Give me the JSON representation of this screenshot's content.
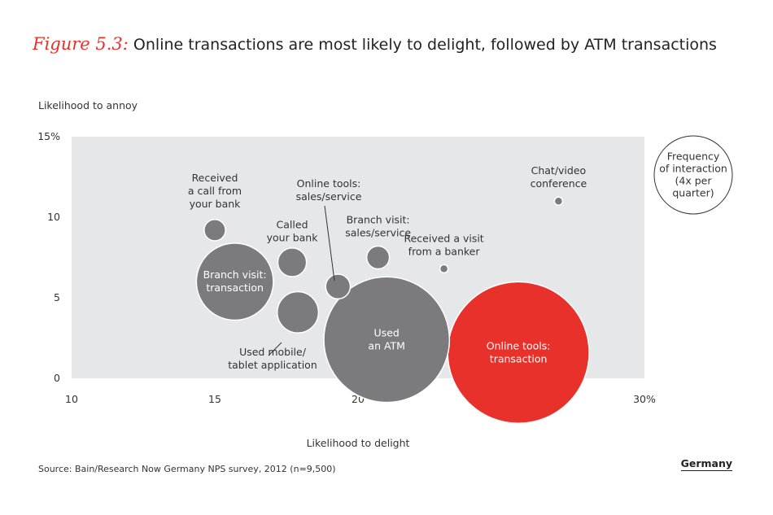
{
  "header": {
    "figure_label": "Figure 5.3:",
    "title": "Online transactions are most likely to delight, followed by ATM transactions"
  },
  "footer": {
    "source": "Source: Bain/Research Now Germany NPS survey, 2012 (n=9,500)",
    "country": "Germany"
  },
  "colors": {
    "plot_background": "#e6e7e8",
    "bubble_gray": "#7b7b7d",
    "bubble_highlight": "#e8312a",
    "annotation_text": "#333333"
  },
  "chart_data": {
    "type": "scatter",
    "variant": "bubble",
    "ylabel": "Likelihood to annoy",
    "xlabel": "Likelihood to delight",
    "xlim": [
      10,
      30
    ],
    "ylim": [
      0,
      15
    ],
    "x_ticks": [
      10,
      15,
      20,
      30
    ],
    "x_tick_labels": [
      "10",
      "15",
      "20",
      "30%"
    ],
    "y_ticks": [
      0,
      5,
      10,
      15
    ],
    "y_tick_labels": [
      "0",
      "5",
      "10",
      "15%"
    ],
    "size_legend": {
      "lines": [
        "Frequency",
        "of interaction",
        "(4x per",
        "quarter)"
      ]
    },
    "points": [
      {
        "label_lines": [
          "Received",
          "a call from",
          "your bank"
        ],
        "x": 15.0,
        "y": 9.2,
        "size": 0.15,
        "highlight": false
      },
      {
        "label_lines": [
          "Branch visit:",
          "transaction"
        ],
        "x": 15.7,
        "y": 6.0,
        "size": 1.95,
        "highlight": false
      },
      {
        "label_lines": [
          "Called",
          "your bank"
        ],
        "x": 17.7,
        "y": 7.2,
        "size": 0.27,
        "highlight": false
      },
      {
        "label_lines": [
          "Used mobile/",
          "tablet application"
        ],
        "x": 17.9,
        "y": 4.1,
        "size": 0.56,
        "highlight": false
      },
      {
        "label_lines": [
          "Online tools:",
          "sales/service"
        ],
        "x": 19.3,
        "y": 5.7,
        "size": 0.2,
        "highlight": false
      },
      {
        "label_lines": [
          "Branch visit:",
          "sales/service"
        ],
        "x": 20.7,
        "y": 7.5,
        "size": 0.17,
        "highlight": false
      },
      {
        "label_lines": [
          "Used",
          "an ATM"
        ],
        "x": 21.0,
        "y": 2.4,
        "size": 5.2,
        "highlight": false
      },
      {
        "label_lines": [
          "Received a visit",
          "from a banker"
        ],
        "x": 23.0,
        "y": 6.8,
        "size": 0.02,
        "highlight": false
      },
      {
        "label_lines": [
          "Chat/video",
          "conference"
        ],
        "x": 27.0,
        "y": 11.0,
        "size": 0.01,
        "highlight": false
      },
      {
        "label_lines": [
          "Online tools:",
          "transaction"
        ],
        "x": 25.6,
        "y": 1.6,
        "size": 6.6,
        "highlight": true
      }
    ]
  }
}
